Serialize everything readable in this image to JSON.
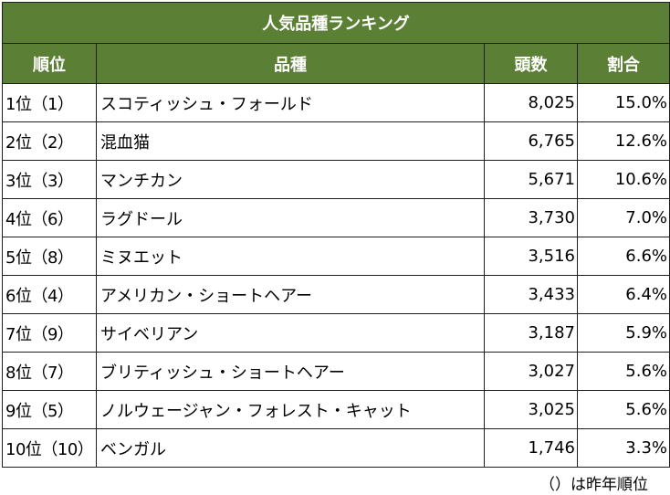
{
  "chart_data": {
    "type": "table",
    "title": "人気品種ランキング",
    "columns": [
      "順位",
      "品種",
      "頭数",
      "割合"
    ],
    "rows": [
      {
        "rank": "1位（1）",
        "breed": "スコティッシュ・フォールド",
        "count": "8,025",
        "share": "15.0%"
      },
      {
        "rank": "2位（2）",
        "breed": "混血猫",
        "count": "6,765",
        "share": "12.6%"
      },
      {
        "rank": "3位（3）",
        "breed": "マンチカン",
        "count": "5,671",
        "share": "10.6%"
      },
      {
        "rank": "4位（6）",
        "breed": "ラグドール",
        "count": "3,730",
        "share": "7.0%"
      },
      {
        "rank": "5位（8）",
        "breed": "ミヌエット",
        "count": "3,516",
        "share": "6.6%"
      },
      {
        "rank": "6位（4）",
        "breed": "アメリカン・ショートヘアー",
        "count": "3,433",
        "share": "6.4%"
      },
      {
        "rank": "7位（9）",
        "breed": "サイベリアン",
        "count": "3,187",
        "share": "5.9%"
      },
      {
        "rank": "8位（7）",
        "breed": "ブリティッシュ・ショートヘアー",
        "count": "3,027",
        "share": "5.6%"
      },
      {
        "rank": "9位（5）",
        "breed": "ノルウェージャン・フォレスト・キャット",
        "count": "3,025",
        "share": "5.6%"
      },
      {
        "rank": "10位（10）",
        "breed": "ベンガル",
        "count": "1,746",
        "share": "3.3%"
      }
    ],
    "footnote": "（）は昨年順位",
    "header_color": "#5b7f34",
    "header_text_color": "#ffffff"
  }
}
